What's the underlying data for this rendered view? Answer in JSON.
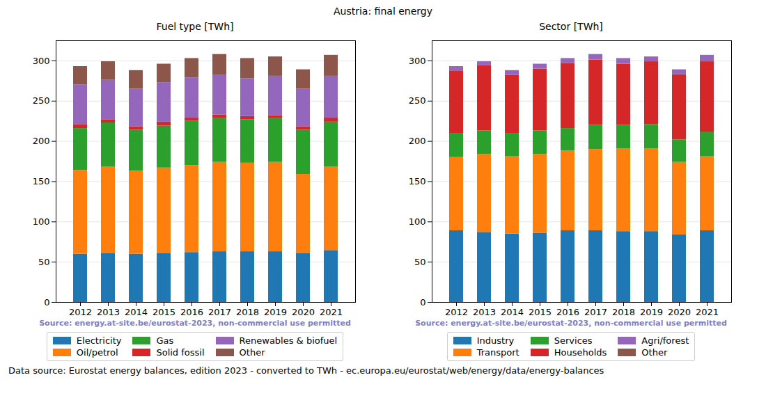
{
  "title": "Austria: final energy",
  "caption": "Data source: Eurostat energy balances, edition 2023 - converted to TWh - ec.europa.eu/eurostat/web/energy/data/energy-balances",
  "chart_data": [
    {
      "type": "bar",
      "title": "Fuel type [TWh]",
      "annotation": "Source: energy.at-site.be/eurostat-2023, non-commercial use permitted",
      "categories": [
        "2012",
        "2013",
        "2014",
        "2015",
        "2016",
        "2017",
        "2018",
        "2019",
        "2020",
        "2021"
      ],
      "series": [
        {
          "name": "Electricity",
          "color": "#1f77b4",
          "values": [
            60,
            61,
            60,
            61,
            62,
            63,
            63,
            63,
            61,
            64
          ]
        },
        {
          "name": "Oil/petrol",
          "color": "#ff7f0e",
          "values": [
            104,
            107,
            103,
            106,
            108,
            111,
            110,
            111,
            98,
            104
          ]
        },
        {
          "name": "Gas",
          "color": "#2ca02c",
          "values": [
            52,
            55,
            51,
            52,
            55,
            55,
            54,
            55,
            55,
            56
          ]
        },
        {
          "name": "Solid fossil",
          "color": "#d62728",
          "values": [
            5,
            4,
            4,
            5,
            4,
            4,
            4,
            3,
            4,
            5
          ]
        },
        {
          "name": "Renewables & biofuel",
          "color": "#9467bd",
          "values": [
            49,
            49,
            47,
            49,
            50,
            49,
            47,
            49,
            47,
            52
          ]
        },
        {
          "name": "Other",
          "color": "#8c564b",
          "values": [
            23,
            23,
            23,
            23,
            24,
            26,
            25,
            24,
            24,
            26
          ]
        }
      ],
      "ylim": [
        0,
        325
      ],
      "yticks": [
        0,
        50,
        100,
        150,
        200,
        250,
        300
      ],
      "grid": true,
      "stacked": true,
      "legend": "below"
    },
    {
      "type": "bar",
      "title": "Sector [TWh]",
      "annotation": "Source: energy.at-site.be/eurostat-2023, non-commercial use permitted",
      "categories": [
        "2012",
        "2013",
        "2014",
        "2015",
        "2016",
        "2017",
        "2018",
        "2019",
        "2020",
        "2021"
      ],
      "series": [
        {
          "name": "Industry",
          "color": "#1f77b4",
          "values": [
            89,
            87,
            85,
            86,
            89,
            89,
            88,
            88,
            84,
            89
          ]
        },
        {
          "name": "Transport",
          "color": "#ff7f0e",
          "values": [
            91,
            97,
            96,
            98,
            99,
            101,
            103,
            103,
            90,
            92
          ]
        },
        {
          "name": "Services",
          "color": "#2ca02c",
          "values": [
            30,
            29,
            29,
            29,
            28,
            30,
            29,
            30,
            28,
            30
          ]
        },
        {
          "name": "Households",
          "color": "#d62728",
          "values": [
            77,
            81,
            72,
            77,
            81,
            81,
            76,
            78,
            81,
            88
          ]
        },
        {
          "name": "Agri/forest",
          "color": "#9467bd",
          "values": [
            6,
            5,
            6,
            6,
            6,
            7,
            7,
            6,
            6,
            8
          ]
        },
        {
          "name": "Other",
          "color": "#8c564b",
          "values": [
            0,
            0,
            0,
            0,
            0,
            0,
            0,
            0,
            0,
            0
          ]
        }
      ],
      "ylim": [
        0,
        325
      ],
      "yticks": [
        0,
        50,
        100,
        150,
        200,
        250,
        300
      ],
      "grid": true,
      "stacked": true,
      "legend": "below"
    }
  ]
}
